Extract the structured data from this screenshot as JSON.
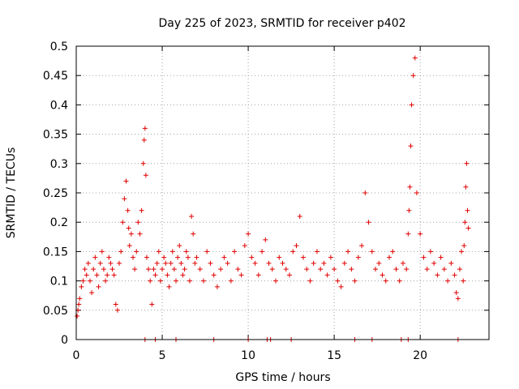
{
  "chart_data": {
    "type": "scatter",
    "title": "Day 225 of 2023, SRMTID for receiver p402",
    "xlabel": "GPS time / hours",
    "ylabel": "SRMTID / TECUs",
    "xlim": [
      0,
      24
    ],
    "ylim": [
      0,
      0.5
    ],
    "xticks": [
      0,
      5,
      10,
      15,
      20
    ],
    "yticks": [
      0,
      0.05,
      0.1,
      0.15,
      0.2,
      0.25,
      0.3,
      0.35,
      0.4,
      0.45,
      0.5
    ],
    "marker": "+",
    "color": "#e00000",
    "grid": true,
    "series": [
      {
        "name": "SRMTID",
        "x": [
          0.05,
          0.1,
          0.15,
          0.2,
          0.3,
          0.4,
          0.5,
          0.6,
          0.7,
          0.8,
          0.9,
          1.0,
          1.1,
          1.2,
          1.3,
          1.4,
          1.5,
          1.6,
          1.7,
          1.8,
          1.9,
          2.0,
          2.1,
          2.2,
          2.3,
          2.4,
          2.5,
          2.6,
          2.7,
          2.8,
          2.9,
          3.0,
          3.05,
          3.1,
          3.2,
          3.3,
          3.4,
          3.5,
          3.6,
          3.7,
          3.8,
          3.9,
          3.95,
          4.0,
          4.05,
          4.1,
          4.2,
          4.3,
          4.4,
          4.5,
          4.6,
          4.7,
          4.8,
          4.9,
          5.0,
          5.1,
          5.2,
          5.3,
          5.4,
          5.5,
          5.6,
          5.7,
          5.8,
          5.9,
          6.0,
          6.1,
          6.2,
          6.3,
          6.4,
          6.5,
          6.6,
          6.7,
          6.8,
          6.9,
          7.0,
          7.2,
          7.4,
          7.6,
          7.8,
          8.0,
          8.2,
          8.4,
          8.6,
          8.8,
          9.0,
          9.2,
          9.4,
          9.6,
          9.8,
          10.0,
          10.2,
          10.4,
          10.6,
          10.8,
          11.0,
          11.2,
          11.4,
          11.6,
          11.8,
          12.0,
          12.2,
          12.4,
          12.6,
          12.8,
          13.0,
          13.2,
          13.4,
          13.6,
          13.8,
          14.0,
          14.2,
          14.4,
          14.6,
          14.8,
          15.0,
          15.2,
          15.4,
          15.6,
          15.8,
          16.0,
          16.2,
          16.4,
          16.6,
          16.8,
          17.0,
          17.2,
          17.4,
          17.6,
          17.8,
          18.0,
          18.2,
          18.4,
          18.6,
          18.8,
          19.0,
          19.2,
          19.3,
          19.35,
          19.4,
          19.45,
          19.5,
          19.6,
          19.7,
          19.8,
          20.0,
          20.2,
          20.4,
          20.6,
          20.8,
          21.0,
          21.2,
          21.4,
          21.6,
          21.8,
          22.0,
          22.1,
          22.2,
          22.3,
          22.4,
          22.5,
          22.55,
          22.6,
          22.65,
          22.7,
          22.75,
          22.8
        ],
        "y": [
          0.04,
          0.05,
          0.06,
          0.07,
          0.09,
          0.1,
          0.12,
          0.11,
          0.13,
          0.1,
          0.08,
          0.12,
          0.14,
          0.11,
          0.09,
          0.13,
          0.15,
          0.12,
          0.1,
          0.11,
          0.14,
          0.13,
          0.12,
          0.11,
          0.06,
          0.05,
          0.13,
          0.15,
          0.2,
          0.24,
          0.27,
          0.22,
          0.19,
          0.16,
          0.18,
          0.14,
          0.12,
          0.15,
          0.2,
          0.18,
          0.22,
          0.3,
          0.34,
          0.36,
          0.28,
          0.14,
          0.12,
          0.1,
          0.06,
          0.12,
          0.11,
          0.13,
          0.15,
          0.1,
          0.12,
          0.14,
          0.13,
          0.11,
          0.09,
          0.13,
          0.15,
          0.12,
          0.1,
          0.14,
          0.16,
          0.13,
          0.11,
          0.12,
          0.15,
          0.14,
          0.1,
          0.21,
          0.18,
          0.13,
          0.14,
          0.12,
          0.1,
          0.15,
          0.13,
          0.11,
          0.09,
          0.12,
          0.14,
          0.13,
          0.1,
          0.15,
          0.12,
          0.11,
          0.16,
          0.18,
          0.14,
          0.13,
          0.11,
          0.15,
          0.17,
          0.13,
          0.12,
          0.1,
          0.14,
          0.13,
          0.12,
          0.11,
          0.15,
          0.16,
          0.21,
          0.14,
          0.12,
          0.1,
          0.13,
          0.15,
          0.12,
          0.13,
          0.11,
          0.14,
          0.12,
          0.1,
          0.09,
          0.13,
          0.15,
          0.12,
          0.1,
          0.14,
          0.16,
          0.25,
          0.2,
          0.15,
          0.12,
          0.13,
          0.11,
          0.1,
          0.14,
          0.15,
          0.12,
          0.1,
          0.13,
          0.12,
          0.18,
          0.22,
          0.26,
          0.33,
          0.4,
          0.45,
          0.48,
          0.25,
          0.18,
          0.14,
          0.12,
          0.15,
          0.13,
          0.11,
          0.14,
          0.12,
          0.1,
          0.13,
          0.11,
          0.08,
          0.07,
          0.12,
          0.15,
          0.1,
          0.16,
          0.2,
          0.26,
          0.3,
          0.22,
          0.19
        ]
      }
    ],
    "zero_markers": [
      4.0,
      4.6,
      5.8,
      8.0,
      10.0,
      11.1,
      11.3,
      12.5,
      16.2,
      17.2,
      18.9,
      19.3,
      22.2
    ]
  }
}
